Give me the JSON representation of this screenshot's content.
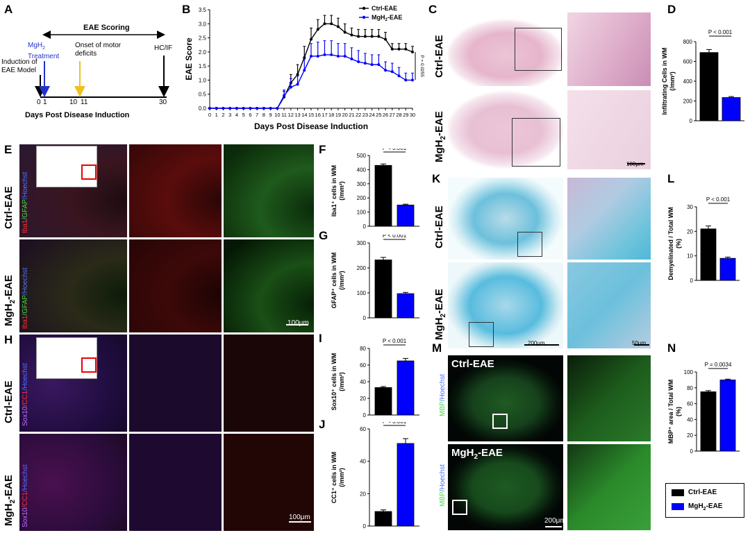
{
  "panels": {
    "A": "A",
    "B": "B",
    "C": "C",
    "D": "D",
    "E": "E",
    "F": "F",
    "G": "G",
    "H": "H",
    "I": "I",
    "J": "J",
    "K": "K",
    "L": "L",
    "M": "M",
    "N": "N"
  },
  "rows": {
    "ctrl": "Ctrl-EAE",
    "mgh_pre": "MgH",
    "mgh_sub": "2",
    "mgh_post": "-EAE"
  },
  "timeline": {
    "header": "EAE Scoring",
    "induction": "Induction of EAE Model",
    "treatment_pre": "MgH",
    "treatment_sub": "2",
    "treatment_post": "Treatment",
    "onset": "Onset of motor deficits",
    "end": "HC/IF",
    "ticks": [
      "0",
      "1",
      "10",
      "11",
      "30"
    ],
    "axis": "Days Post Disease Induction"
  },
  "stains": {
    "E": {
      "a": "Iba1",
      "b": "/GFAP",
      "c": "/Hoechst"
    },
    "H": {
      "a": "Sox10",
      "b": "/CC1",
      "c": "/Hoechst"
    },
    "M": {
      "a": "MBP",
      "b": "/Hoechst"
    }
  },
  "scalebars": {
    "C": "100μm",
    "E": "100μm",
    "H": "100μm",
    "K1": "200μm",
    "K2": "50μm",
    "M": "200μm"
  },
  "legend": {
    "ctrl": "Ctrl-EAE",
    "mgh_pre": "MgH",
    "mgh_sub": "2",
    "mgh_post": "-EAE"
  },
  "colors": {
    "ctrl": "#000000",
    "mgh": "#0000ff"
  },
  "chart_data": [
    {
      "id": "B",
      "type": "line",
      "xlabel": "Days Post Disease Induction",
      "ylabel": "EAE Score",
      "x": [
        0,
        1,
        2,
        3,
        4,
        5,
        6,
        7,
        8,
        9,
        10,
        11,
        12,
        13,
        14,
        15,
        16,
        17,
        18,
        19,
        20,
        21,
        22,
        23,
        24,
        25,
        26,
        27,
        28,
        29,
        30
      ],
      "xlim": [
        0,
        30
      ],
      "ylim": [
        0,
        3.5
      ],
      "yticks": [
        "0.0",
        "0.5",
        "1.0",
        "1.5",
        "2.0",
        "2.5",
        "3.0",
        "3.5"
      ],
      "annotation": "P = 0.0255",
      "series": [
        {
          "name": "Ctrl-EAE",
          "color": "#000000",
          "values": [
            0,
            0,
            0,
            0,
            0,
            0,
            0,
            0,
            0,
            0,
            0,
            0.4,
            0.9,
            1.2,
            1.8,
            2.45,
            2.8,
            3.0,
            3.0,
            2.9,
            2.7,
            2.6,
            2.55,
            2.55,
            2.55,
            2.55,
            2.45,
            2.1,
            2.1,
            2.1,
            2.0
          ],
          "err": [
            0,
            0,
            0,
            0,
            0,
            0,
            0,
            0,
            0,
            0,
            0,
            0.2,
            0.3,
            0.35,
            0.4,
            0.4,
            0.35,
            0.3,
            0.3,
            0.3,
            0.3,
            0.25,
            0.25,
            0.25,
            0.25,
            0.25,
            0.25,
            0.2,
            0.2,
            0.2,
            0.2
          ]
        },
        {
          "name": "MgH2-EAE",
          "color": "#0000ff",
          "values": [
            0,
            0,
            0,
            0,
            0,
            0,
            0,
            0,
            0,
            0,
            0,
            0.45,
            0.75,
            0.85,
            1.35,
            1.85,
            1.85,
            1.9,
            1.9,
            1.85,
            1.85,
            1.75,
            1.65,
            1.6,
            1.55,
            1.55,
            1.35,
            1.3,
            1.15,
            1.0,
            1.0
          ],
          "err": [
            0,
            0,
            0,
            0,
            0,
            0,
            0,
            0,
            0,
            0,
            0,
            0.2,
            0.3,
            0.3,
            0.4,
            0.45,
            0.5,
            0.5,
            0.5,
            0.45,
            0.45,
            0.4,
            0.4,
            0.35,
            0.35,
            0.35,
            0.3,
            0.3,
            0.3,
            0.25,
            0.25
          ]
        }
      ]
    },
    {
      "id": "D",
      "type": "bar",
      "ylab1": "Infiltrating Cells in WM",
      "ylab2": "(/mm²)",
      "ylim": [
        0,
        800
      ],
      "yticks": [
        "0",
        "200",
        "400",
        "600",
        "800"
      ],
      "values": [
        690,
        235
      ],
      "err": [
        30,
        10
      ],
      "p": "P < 0.001"
    },
    {
      "id": "F",
      "type": "bar",
      "ylab1": "Iba1⁺ cells in WM",
      "ylab2": "(/mm²)",
      "ylim": [
        0,
        500
      ],
      "yticks": [
        "0",
        "100",
        "200",
        "300",
        "400",
        "500"
      ],
      "values": [
        430,
        150
      ],
      "err": [
        10,
        6
      ],
      "p": "P < 0.001"
    },
    {
      "id": "G",
      "type": "bar",
      "ylab1": "GFAP⁺ cells in WM",
      "ylab2": "(/mm²)",
      "ylim": [
        0,
        300
      ],
      "yticks": [
        "0",
        "100",
        "200",
        "300"
      ],
      "values": [
        232,
        97
      ],
      "err": [
        10,
        5
      ],
      "p": "P < 0.001"
    },
    {
      "id": "I",
      "type": "bar",
      "ylab1": "Sox10⁺ cells in WM",
      "ylab2": "(/mm²)",
      "ylim": [
        0,
        80
      ],
      "yticks": [
        "0",
        "20",
        "40",
        "60",
        "80"
      ],
      "values": [
        33,
        65
      ],
      "err": [
        1.2,
        3
      ],
      "p": "P < 0.001"
    },
    {
      "id": "J",
      "type": "bar",
      "ylab1": "CC1⁺ cells in WM",
      "ylab2": "(/mm²)",
      "ylim": [
        0,
        60
      ],
      "yticks": [
        "0",
        "20",
        "40",
        "60"
      ],
      "values": [
        9,
        51
      ],
      "err": [
        1,
        3
      ],
      "p": "P < 0.001"
    },
    {
      "id": "L",
      "type": "bar",
      "ylab1": "Demyelinated / Total WM",
      "ylab2": "(%)",
      "ylim": [
        0,
        30
      ],
      "yticks": [
        "0",
        "10",
        "20",
        "30"
      ],
      "values": [
        21,
        9
      ],
      "err": [
        1.2,
        0.5
      ],
      "p": "P < 0.001"
    },
    {
      "id": "N",
      "type": "bar",
      "ylab1": "MBP⁺ area / Total WM",
      "ylab2": "(%)",
      "ylim": [
        0,
        100
      ],
      "yticks": [
        "0",
        "20",
        "40",
        "60",
        "80",
        "100"
      ],
      "values": [
        75,
        90
      ],
      "err": [
        1.5,
        1
      ],
      "p": "P = 0.0034"
    }
  ]
}
